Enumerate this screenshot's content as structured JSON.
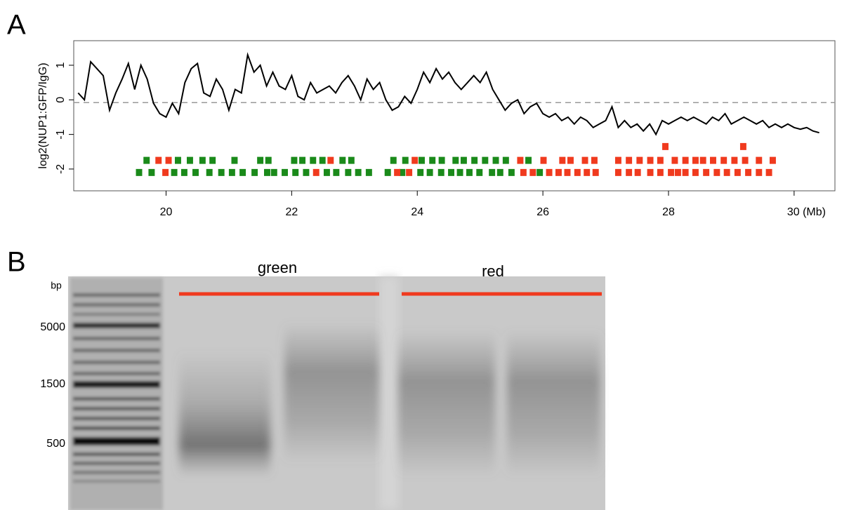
{
  "chart_data": {
    "type": "line",
    "panel_label": "A",
    "y_label": "log2(NUP1:GFP/IgG)",
    "color": "#000000",
    "xlim": [
      18.53,
      30.65
    ],
    "ylim": [
      -2.63,
      1.71
    ],
    "xticks": [
      20,
      22,
      24,
      26,
      28,
      {
        "value": 30,
        "label": "30 (Mb)"
      }
    ],
    "yticks": [
      -2,
      -1,
      0,
      1
    ],
    "ref_line": -0.08,
    "x": [
      18.6,
      18.7,
      18.8,
      18.9,
      19.0,
      19.1,
      19.2,
      19.3,
      19.4,
      19.5,
      19.6,
      19.7,
      19.8,
      19.9,
      20.0,
      20.1,
      20.2,
      20.3,
      20.4,
      20.5,
      20.6,
      20.7,
      20.8,
      20.9,
      21.0,
      21.1,
      21.2,
      21.3,
      21.4,
      21.5,
      21.6,
      21.7,
      21.8,
      21.9,
      22.0,
      22.1,
      22.2,
      22.3,
      22.4,
      22.5,
      22.6,
      22.7,
      22.8,
      22.9,
      23.0,
      23.1,
      23.2,
      23.3,
      23.4,
      23.5,
      23.6,
      23.7,
      23.8,
      23.9,
      24.0,
      24.1,
      24.2,
      24.3,
      24.4,
      24.5,
      24.6,
      24.7,
      24.8,
      24.9,
      25.0,
      25.1,
      25.2,
      25.3,
      25.4,
      25.5,
      25.6,
      25.7,
      25.8,
      25.9,
      26.0,
      26.1,
      26.2,
      26.3,
      26.4,
      26.5,
      26.6,
      26.7,
      26.8,
      26.9,
      27.0,
      27.1,
      27.2,
      27.3,
      27.4,
      27.5,
      27.6,
      27.7,
      27.8,
      27.9,
      28.0,
      28.1,
      28.2,
      28.3,
      28.4,
      28.5,
      28.6,
      28.7,
      28.8,
      28.9,
      29.0,
      29.1,
      29.2,
      29.3,
      29.4,
      29.5,
      29.6,
      29.7,
      29.8,
      29.9,
      30.0,
      30.1,
      30.2,
      30.3,
      30.4
    ],
    "values": [
      0.2,
      0.0,
      1.1,
      0.9,
      0.7,
      -0.3,
      0.2,
      0.6,
      1.05,
      0.3,
      1.0,
      0.6,
      -0.1,
      -0.4,
      -0.5,
      -0.1,
      -0.4,
      0.5,
      0.9,
      1.05,
      0.2,
      0.1,
      0.6,
      0.3,
      -0.3,
      0.3,
      0.2,
      1.3,
      0.8,
      1.0,
      0.4,
      0.8,
      0.4,
      0.3,
      0.7,
      0.1,
      0.0,
      0.5,
      0.2,
      0.3,
      0.4,
      0.2,
      0.5,
      0.7,
      0.4,
      0.0,
      0.6,
      0.3,
      0.5,
      0.0,
      -0.3,
      -0.2,
      0.1,
      -0.1,
      0.3,
      0.8,
      0.5,
      0.9,
      0.6,
      0.8,
      0.5,
      0.3,
      0.5,
      0.7,
      0.5,
      0.8,
      0.3,
      0.0,
      -0.3,
      -0.1,
      0.0,
      -0.4,
      -0.2,
      -0.1,
      -0.4,
      -0.5,
      -0.4,
      -0.6,
      -0.5,
      -0.7,
      -0.5,
      -0.6,
      -0.8,
      -0.7,
      -0.6,
      -0.2,
      -0.8,
      -0.6,
      -0.8,
      -0.7,
      -0.9,
      -0.7,
      -1.0,
      -0.6,
      -0.7,
      -0.6,
      -0.5,
      -0.6,
      -0.5,
      -0.6,
      -0.7,
      -0.5,
      -0.6,
      -0.4,
      -0.7,
      -0.6,
      -0.5,
      -0.6,
      -0.7,
      -0.6,
      -0.8,
      -0.7,
      -0.8,
      -0.7,
      -0.8,
      -0.85,
      -0.8,
      -0.9,
      -0.95
    ],
    "block_width": 0.1,
    "blocks": [
      {
        "color": "#f03a1e",
        "y": -1.35,
        "x": [
          27.95,
          29.19
        ]
      },
      {
        "color": "#1a8a1a",
        "y": -1.75,
        "x": [
          19.69,
          20.19,
          20.38,
          20.58,
          20.74,
          21.09,
          21.5,
          21.63,
          22.04,
          22.17,
          22.34,
          22.49,
          22.81,
          22.95,
          23.62,
          23.81,
          24.07,
          24.24,
          24.39,
          24.61,
          24.74,
          24.91,
          25.08,
          25.25,
          25.41,
          25.77
        ]
      },
      {
        "color": "#f03a1e",
        "y": -1.75,
        "x": [
          19.88,
          20.04,
          22.62,
          23.96,
          25.64,
          26.01,
          26.31,
          26.44,
          26.67,
          26.82,
          27.2,
          27.37,
          27.54,
          27.71,
          27.87,
          28.1,
          28.27,
          28.43,
          28.55,
          28.71,
          28.88,
          29.05,
          29.22,
          29.44,
          29.66
        ]
      },
      {
        "color": "#1a8a1a",
        "y": -2.1,
        "x": [
          19.57,
          19.77,
          20.13,
          20.29,
          20.47,
          20.69,
          20.88,
          21.05,
          21.22,
          21.41,
          21.61,
          21.72,
          21.89,
          22.06,
          22.23,
          22.56,
          22.71,
          22.9,
          23.06,
          23.23,
          23.53,
          23.76,
          24.05,
          24.2,
          24.38,
          24.54,
          24.68,
          24.83,
          24.99,
          25.19,
          25.32,
          25.5,
          25.95
        ]
      },
      {
        "color": "#f03a1e",
        "y": -2.1,
        "x": [
          19.99,
          22.39,
          23.68,
          23.87,
          25.69,
          25.84,
          26.1,
          26.25,
          26.39,
          26.55,
          26.7,
          26.84,
          27.2,
          27.37,
          27.51,
          27.71,
          27.87,
          28.04,
          28.15,
          28.27,
          28.43,
          28.6,
          28.77,
          28.93,
          29.1,
          29.27,
          29.44,
          29.6
        ]
      }
    ]
  },
  "gel": {
    "panel_label": "B",
    "unit": "bp",
    "markers": [
      5000,
      1500,
      500
    ],
    "groups": [
      "green",
      "red"
    ]
  }
}
